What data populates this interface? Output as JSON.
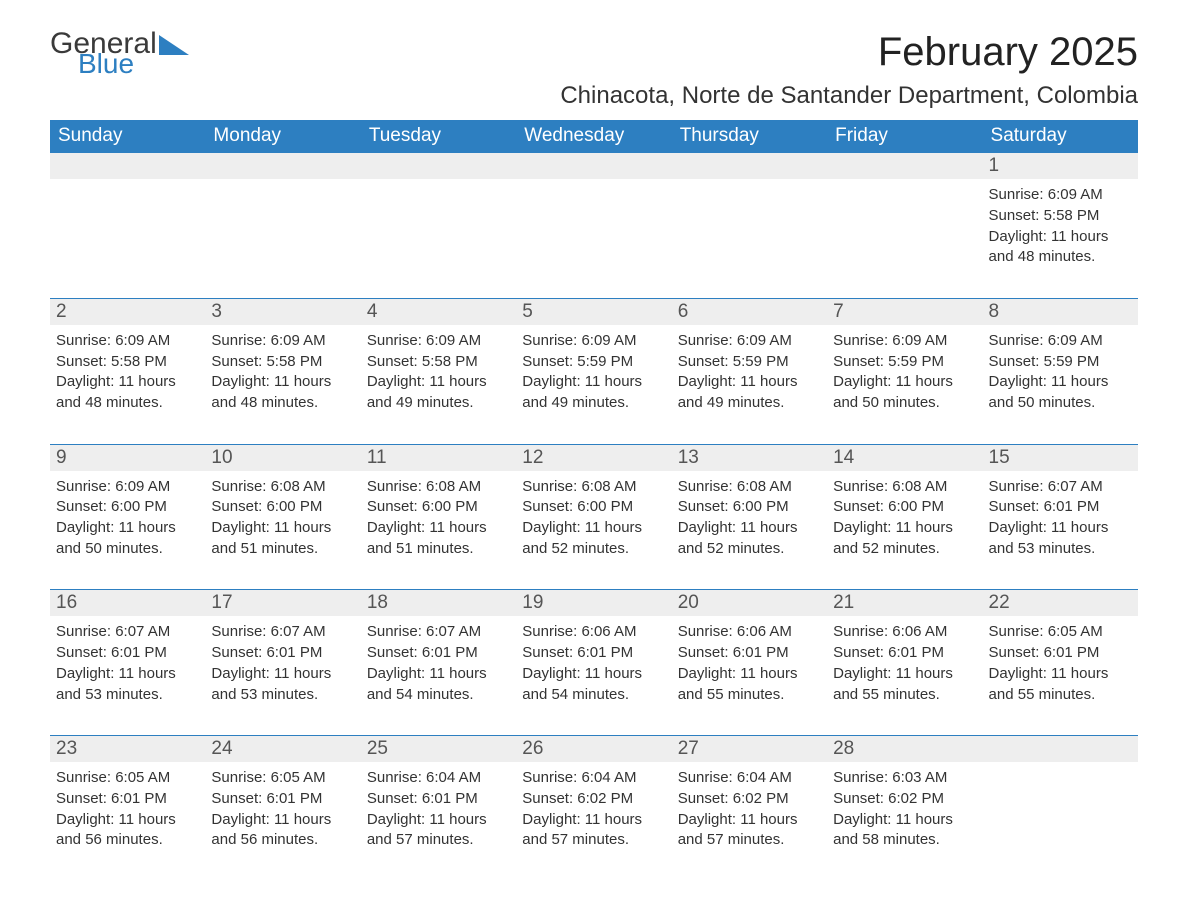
{
  "logo": {
    "text1": "General",
    "text2": "Blue",
    "accent_color": "#2d7fc1"
  },
  "month_title": "February 2025",
  "location": "Chinacota, Norte de Santander Department, Colombia",
  "dow": [
    "Sunday",
    "Monday",
    "Tuesday",
    "Wednesday",
    "Thursday",
    "Friday",
    "Saturday"
  ],
  "colors": {
    "header_bg": "#2d7fc1",
    "header_text": "#ffffff",
    "daynum_bg": "#eeeeee",
    "daynum_border": "#2d7fc1",
    "body_text": "#333333",
    "background": "#ffffff"
  },
  "fonts": {
    "month_title_pt": 40,
    "location_pt": 24,
    "dow_pt": 19,
    "daynum_pt": 19,
    "detail_pt": 15
  },
  "weeks": [
    {
      "nums": [
        "",
        "",
        "",
        "",
        "",
        "",
        "1"
      ],
      "details": [
        [],
        [],
        [],
        [],
        [],
        [],
        [
          "Sunrise: 6:09 AM",
          "Sunset: 5:58 PM",
          "Daylight: 11 hours",
          "and 48 minutes."
        ]
      ]
    },
    {
      "nums": [
        "2",
        "3",
        "4",
        "5",
        "6",
        "7",
        "8"
      ],
      "details": [
        [
          "Sunrise: 6:09 AM",
          "Sunset: 5:58 PM",
          "Daylight: 11 hours",
          "and 48 minutes."
        ],
        [
          "Sunrise: 6:09 AM",
          "Sunset: 5:58 PM",
          "Daylight: 11 hours",
          "and 48 minutes."
        ],
        [
          "Sunrise: 6:09 AM",
          "Sunset: 5:58 PM",
          "Daylight: 11 hours",
          "and 49 minutes."
        ],
        [
          "Sunrise: 6:09 AM",
          "Sunset: 5:59 PM",
          "Daylight: 11 hours",
          "and 49 minutes."
        ],
        [
          "Sunrise: 6:09 AM",
          "Sunset: 5:59 PM",
          "Daylight: 11 hours",
          "and 49 minutes."
        ],
        [
          "Sunrise: 6:09 AM",
          "Sunset: 5:59 PM",
          "Daylight: 11 hours",
          "and 50 minutes."
        ],
        [
          "Sunrise: 6:09 AM",
          "Sunset: 5:59 PM",
          "Daylight: 11 hours",
          "and 50 minutes."
        ]
      ]
    },
    {
      "nums": [
        "9",
        "10",
        "11",
        "12",
        "13",
        "14",
        "15"
      ],
      "details": [
        [
          "Sunrise: 6:09 AM",
          "Sunset: 6:00 PM",
          "Daylight: 11 hours",
          "and 50 minutes."
        ],
        [
          "Sunrise: 6:08 AM",
          "Sunset: 6:00 PM",
          "Daylight: 11 hours",
          "and 51 minutes."
        ],
        [
          "Sunrise: 6:08 AM",
          "Sunset: 6:00 PM",
          "Daylight: 11 hours",
          "and 51 minutes."
        ],
        [
          "Sunrise: 6:08 AM",
          "Sunset: 6:00 PM",
          "Daylight: 11 hours",
          "and 52 minutes."
        ],
        [
          "Sunrise: 6:08 AM",
          "Sunset: 6:00 PM",
          "Daylight: 11 hours",
          "and 52 minutes."
        ],
        [
          "Sunrise: 6:08 AM",
          "Sunset: 6:00 PM",
          "Daylight: 11 hours",
          "and 52 minutes."
        ],
        [
          "Sunrise: 6:07 AM",
          "Sunset: 6:01 PM",
          "Daylight: 11 hours",
          "and 53 minutes."
        ]
      ]
    },
    {
      "nums": [
        "16",
        "17",
        "18",
        "19",
        "20",
        "21",
        "22"
      ],
      "details": [
        [
          "Sunrise: 6:07 AM",
          "Sunset: 6:01 PM",
          "Daylight: 11 hours",
          "and 53 minutes."
        ],
        [
          "Sunrise: 6:07 AM",
          "Sunset: 6:01 PM",
          "Daylight: 11 hours",
          "and 53 minutes."
        ],
        [
          "Sunrise: 6:07 AM",
          "Sunset: 6:01 PM",
          "Daylight: 11 hours",
          "and 54 minutes."
        ],
        [
          "Sunrise: 6:06 AM",
          "Sunset: 6:01 PM",
          "Daylight: 11 hours",
          "and 54 minutes."
        ],
        [
          "Sunrise: 6:06 AM",
          "Sunset: 6:01 PM",
          "Daylight: 11 hours",
          "and 55 minutes."
        ],
        [
          "Sunrise: 6:06 AM",
          "Sunset: 6:01 PM",
          "Daylight: 11 hours",
          "and 55 minutes."
        ],
        [
          "Sunrise: 6:05 AM",
          "Sunset: 6:01 PM",
          "Daylight: 11 hours",
          "and 55 minutes."
        ]
      ]
    },
    {
      "nums": [
        "23",
        "24",
        "25",
        "26",
        "27",
        "28",
        ""
      ],
      "details": [
        [
          "Sunrise: 6:05 AM",
          "Sunset: 6:01 PM",
          "Daylight: 11 hours",
          "and 56 minutes."
        ],
        [
          "Sunrise: 6:05 AM",
          "Sunset: 6:01 PM",
          "Daylight: 11 hours",
          "and 56 minutes."
        ],
        [
          "Sunrise: 6:04 AM",
          "Sunset: 6:01 PM",
          "Daylight: 11 hours",
          "and 57 minutes."
        ],
        [
          "Sunrise: 6:04 AM",
          "Sunset: 6:02 PM",
          "Daylight: 11 hours",
          "and 57 minutes."
        ],
        [
          "Sunrise: 6:04 AM",
          "Sunset: 6:02 PM",
          "Daylight: 11 hours",
          "and 57 minutes."
        ],
        [
          "Sunrise: 6:03 AM",
          "Sunset: 6:02 PM",
          "Daylight: 11 hours",
          "and 58 minutes."
        ],
        []
      ]
    }
  ]
}
